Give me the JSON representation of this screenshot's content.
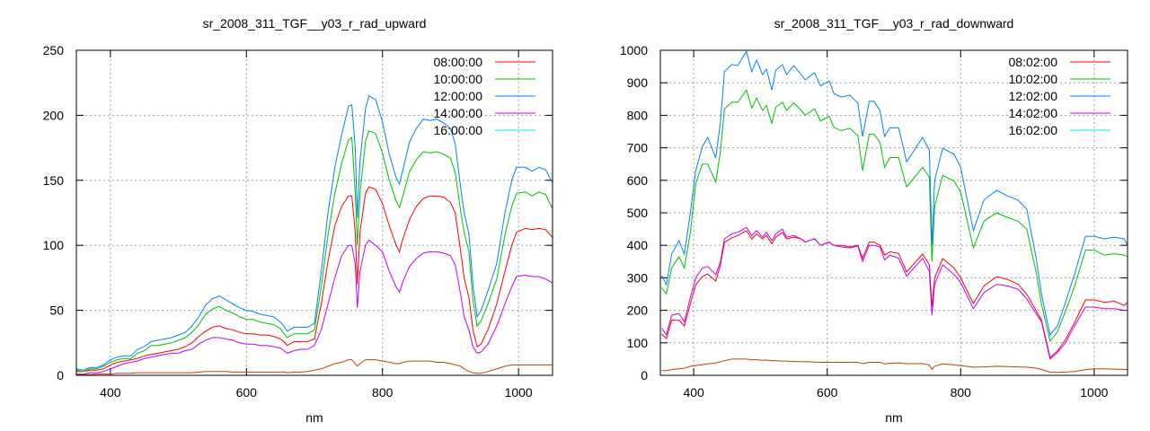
{
  "chart_data": [
    {
      "type": "line",
      "title": "sr_2008_311_TGF__y03_r_rad_upward",
      "xlabel": "nm",
      "ylabel": "",
      "xlim": [
        350,
        1050
      ],
      "ylim": [
        0,
        250
      ],
      "xticks": [
        400,
        600,
        800,
        1000
      ],
      "yticks": [
        0,
        50,
        100,
        150,
        200,
        250
      ],
      "grid": true,
      "legend_position": "top-right",
      "x": [
        350,
        360,
        370,
        380,
        390,
        400,
        410,
        420,
        430,
        440,
        450,
        460,
        470,
        480,
        490,
        500,
        510,
        520,
        530,
        540,
        550,
        560,
        570,
        580,
        590,
        600,
        610,
        620,
        630,
        640,
        650,
        655,
        660,
        670,
        680,
        690,
        700,
        710,
        720,
        730,
        740,
        750,
        755,
        760,
        763,
        767,
        775,
        780,
        790,
        800,
        810,
        820,
        825,
        830,
        840,
        850,
        860,
        870,
        880,
        890,
        900,
        907,
        915,
        920,
        927,
        933,
        939,
        945,
        955,
        968,
        980,
        990,
        997,
        1010,
        1020,
        1030,
        1040,
        1050
      ],
      "series": [
        {
          "name": "08:00:00",
          "legend_color": "#ff0000",
          "line_color": "#ff0000",
          "values": [
            3,
            3,
            4,
            4,
            5,
            8,
            10,
            11,
            12,
            13,
            15,
            16,
            17,
            18,
            19,
            20,
            22,
            25,
            30,
            34,
            37,
            38,
            36,
            35,
            33,
            32,
            32,
            31,
            31,
            30,
            28,
            26,
            23,
            26,
            26,
            26,
            28,
            55,
            88,
            115,
            130,
            138,
            138,
            110,
            70,
            110,
            140,
            145,
            143,
            132,
            115,
            100,
            95,
            105,
            120,
            130,
            136,
            138,
            138,
            137,
            133,
            125,
            95,
            75,
            60,
            35,
            22,
            24,
            35,
            55,
            80,
            100,
            110,
            113,
            112,
            113,
            112,
            106
          ]
        },
        {
          "name": "10:00:00",
          "legend_color": "#00c000",
          "line_color": "#00c000",
          "values": [
            4,
            3,
            5,
            5,
            7,
            10,
            12,
            13,
            13,
            17,
            19,
            23,
            23,
            24,
            25,
            27,
            29,
            33,
            39,
            47,
            51,
            53,
            50,
            48,
            45,
            43,
            43,
            41,
            40,
            39,
            36,
            32,
            29,
            32,
            32,
            32,
            35,
            68,
            108,
            140,
            163,
            181,
            183,
            140,
            100,
            140,
            180,
            188,
            186,
            171,
            150,
            134,
            129,
            138,
            157,
            166,
            172,
            171,
            172,
            170,
            167,
            156,
            126,
            110,
            95,
            58,
            38,
            42,
            55,
            74,
            108,
            130,
            140,
            141,
            138,
            141,
            139,
            128
          ]
        },
        {
          "name": "12:00:00",
          "legend_color": "#0080ff",
          "line_color": "#0080ff",
          "values": [
            5,
            4,
            6,
            6,
            8,
            12,
            14,
            15,
            15,
            20,
            22,
            26,
            27,
            28,
            29,
            31,
            33,
            38,
            45,
            54,
            59,
            61,
            58,
            55,
            52,
            50,
            49,
            47,
            46,
            45,
            41,
            38,
            34,
            37,
            37,
            37,
            40,
            80,
            125,
            160,
            185,
            207,
            208,
            175,
            121,
            165,
            205,
            215,
            212,
            195,
            170,
            152,
            147,
            158,
            180,
            190,
            197,
            196,
            197,
            194,
            190,
            178,
            144,
            125,
            109,
            70,
            45,
            50,
            65,
            86,
            125,
            150,
            160,
            160,
            157,
            160,
            158,
            148
          ]
        },
        {
          "name": "14:00:00",
          "legend_color": "#c000ff",
          "line_color": "#c000ff",
          "values": [
            1,
            1,
            2,
            2,
            3,
            5,
            7,
            9,
            10,
            11,
            13,
            14,
            15,
            16,
            17,
            17,
            19,
            20,
            24,
            27,
            29,
            29,
            28,
            27,
            25,
            24,
            24,
            23,
            23,
            22,
            21,
            19,
            17,
            19,
            20,
            20,
            23,
            35,
            55,
            75,
            92,
            100,
            100,
            85,
            52,
            80,
            100,
            104,
            100,
            95,
            80,
            68,
            64,
            72,
            84,
            90,
            94,
            95,
            95,
            94,
            92,
            85,
            62,
            45,
            35,
            22,
            17,
            18,
            24,
            38,
            55,
            68,
            76,
            77,
            76,
            76,
            74,
            71
          ]
        },
        {
          "name": "16:00:00",
          "legend_color": "#00eeee",
          "line_color": "#c04000",
          "values": [
            0.5,
            0.5,
            0.5,
            1,
            1,
            1,
            1.5,
            1.5,
            1.5,
            2,
            2,
            2,
            2,
            2,
            2,
            2,
            2,
            2,
            2.5,
            3,
            3,
            3,
            3,
            2.5,
            2.5,
            2.5,
            2.5,
            2.5,
            2.5,
            2.5,
            2.5,
            2.5,
            2,
            2.5,
            2.5,
            3,
            4,
            5,
            7,
            9,
            10,
            12,
            12,
            9,
            7,
            9,
            12,
            12,
            12,
            11,
            10,
            9,
            9,
            10,
            11,
            11,
            11,
            11,
            10,
            10,
            9,
            8,
            7,
            5,
            3,
            2,
            1.5,
            1.5,
            3,
            5,
            7,
            8,
            8,
            8,
            8,
            8,
            8,
            8
          ]
        }
      ]
    },
    {
      "type": "line",
      "title": "sr_2008_311_TGF__y03_r_rad_downward",
      "xlabel": "nm",
      "ylabel": "",
      "xlim": [
        350,
        1050
      ],
      "ylim": [
        0,
        1000
      ],
      "xticks": [
        400,
        600,
        800,
        1000
      ],
      "yticks": [
        0,
        100,
        200,
        300,
        400,
        500,
        600,
        700,
        800,
        900,
        1000
      ],
      "grid": true,
      "legend_position": "top-right",
      "x": [
        352,
        359,
        367,
        378,
        386,
        395,
        403,
        413,
        421,
        433,
        440,
        446,
        457,
        466,
        479,
        487,
        494,
        503,
        509,
        517,
        523,
        533,
        539,
        550,
        561,
        567,
        581,
        590,
        603,
        610,
        621,
        634,
        646,
        653,
        663,
        670,
        679,
        686,
        694,
        707,
        719,
        743,
        753,
        757,
        761,
        773,
        790,
        800,
        819,
        835,
        854,
        870,
        886,
        899,
        913,
        921,
        934,
        945,
        957,
        970,
        987,
        1000,
        1015,
        1030,
        1045,
        1050
      ],
      "series": [
        {
          "name": "08:02:00",
          "legend_color": "#ff0000",
          "line_color": "#ff0000",
          "values": [
            127,
            113,
            170,
            169,
            152,
            220,
            279,
            304,
            312,
            290,
            340,
            409,
            423,
            430,
            445,
            420,
            435,
            420,
            430,
            405,
            425,
            440,
            420,
            425,
            420,
            410,
            420,
            400,
            410,
            400,
            400,
            395,
            400,
            360,
            410,
            410,
            400,
            370,
            380,
            375,
            318,
            373,
            340,
            210,
            300,
            359,
            330,
            300,
            221,
            275,
            304,
            295,
            280,
            250,
            200,
            170,
            55,
            75,
            110,
            160,
            232,
            232,
            225,
            228,
            215,
            225
          ]
        },
        {
          "name": "10:02:00",
          "legend_color": "#00c000",
          "line_color": "#00c000",
          "values": [
            270,
            250,
            330,
            365,
            330,
            440,
            590,
            650,
            650,
            594,
            690,
            820,
            840,
            840,
            878,
            822,
            853,
            815,
            830,
            775,
            825,
            840,
            815,
            838,
            815,
            800,
            820,
            783,
            797,
            763,
            753,
            760,
            737,
            630,
            742,
            742,
            717,
            640,
            670,
            670,
            580,
            640,
            610,
            350,
            520,
            615,
            598,
            563,
            392,
            475,
            500,
            486,
            474,
            450,
            318,
            220,
            105,
            134,
            197,
            270,
            385,
            385,
            370,
            374,
            370,
            365
          ]
        },
        {
          "name": "12:02:00",
          "legend_color": "#0080ff",
          "line_color": "#0080ff",
          "values": [
            307,
            279,
            373,
            414,
            373,
            500,
            630,
            704,
            732,
            669,
            780,
            934,
            956,
            953,
            997,
            934,
            970,
            925,
            942,
            878,
            939,
            956,
            925,
            953,
            925,
            909,
            931,
            890,
            906,
            867,
            856,
            862,
            837,
            735,
            843,
            843,
            815,
            735,
            762,
            762,
            657,
            732,
            693,
            400,
            600,
            699,
            680,
            640,
            445,
            540,
            569,
            552,
            539,
            511,
            362,
            251,
            124,
            152,
            224,
            307,
            428,
            428,
            420,
            425,
            420,
            400
          ]
        },
        {
          "name": "14:02:00",
          "legend_color": "#c000ff",
          "line_color": "#c000ff",
          "values": [
            145,
            125,
            185,
            190,
            165,
            240,
            300,
            330,
            335,
            310,
            350,
            420,
            435,
            440,
            455,
            430,
            445,
            425,
            440,
            415,
            435,
            450,
            425,
            430,
            420,
            410,
            420,
            400,
            410,
            400,
            395,
            392,
            398,
            350,
            400,
            400,
            395,
            355,
            370,
            360,
            305,
            360,
            320,
            185,
            280,
            340,
            310,
            285,
            205,
            255,
            280,
            275,
            265,
            235,
            190,
            165,
            50,
            70,
            100,
            150,
            210,
            210,
            205,
            205,
            200,
            200
          ]
        },
        {
          "name": "16:02:00",
          "legend_color": "#00eeee",
          "line_color": "#c04000",
          "values": [
            15,
            14,
            18,
            20,
            22,
            28,
            30,
            33,
            35,
            38,
            42,
            45,
            50,
            50,
            50,
            48,
            48,
            46,
            47,
            45,
            45,
            44,
            44,
            42,
            42,
            42,
            41,
            40,
            40,
            40,
            40,
            40,
            40,
            36,
            40,
            40,
            40,
            35,
            37,
            38,
            36,
            36,
            32,
            18,
            28,
            35,
            32,
            30,
            25,
            26,
            28,
            27,
            26,
            25,
            22,
            18,
            10,
            9,
            10,
            12,
            17,
            20,
            20,
            19,
            18,
            18
          ]
        }
      ]
    }
  ]
}
